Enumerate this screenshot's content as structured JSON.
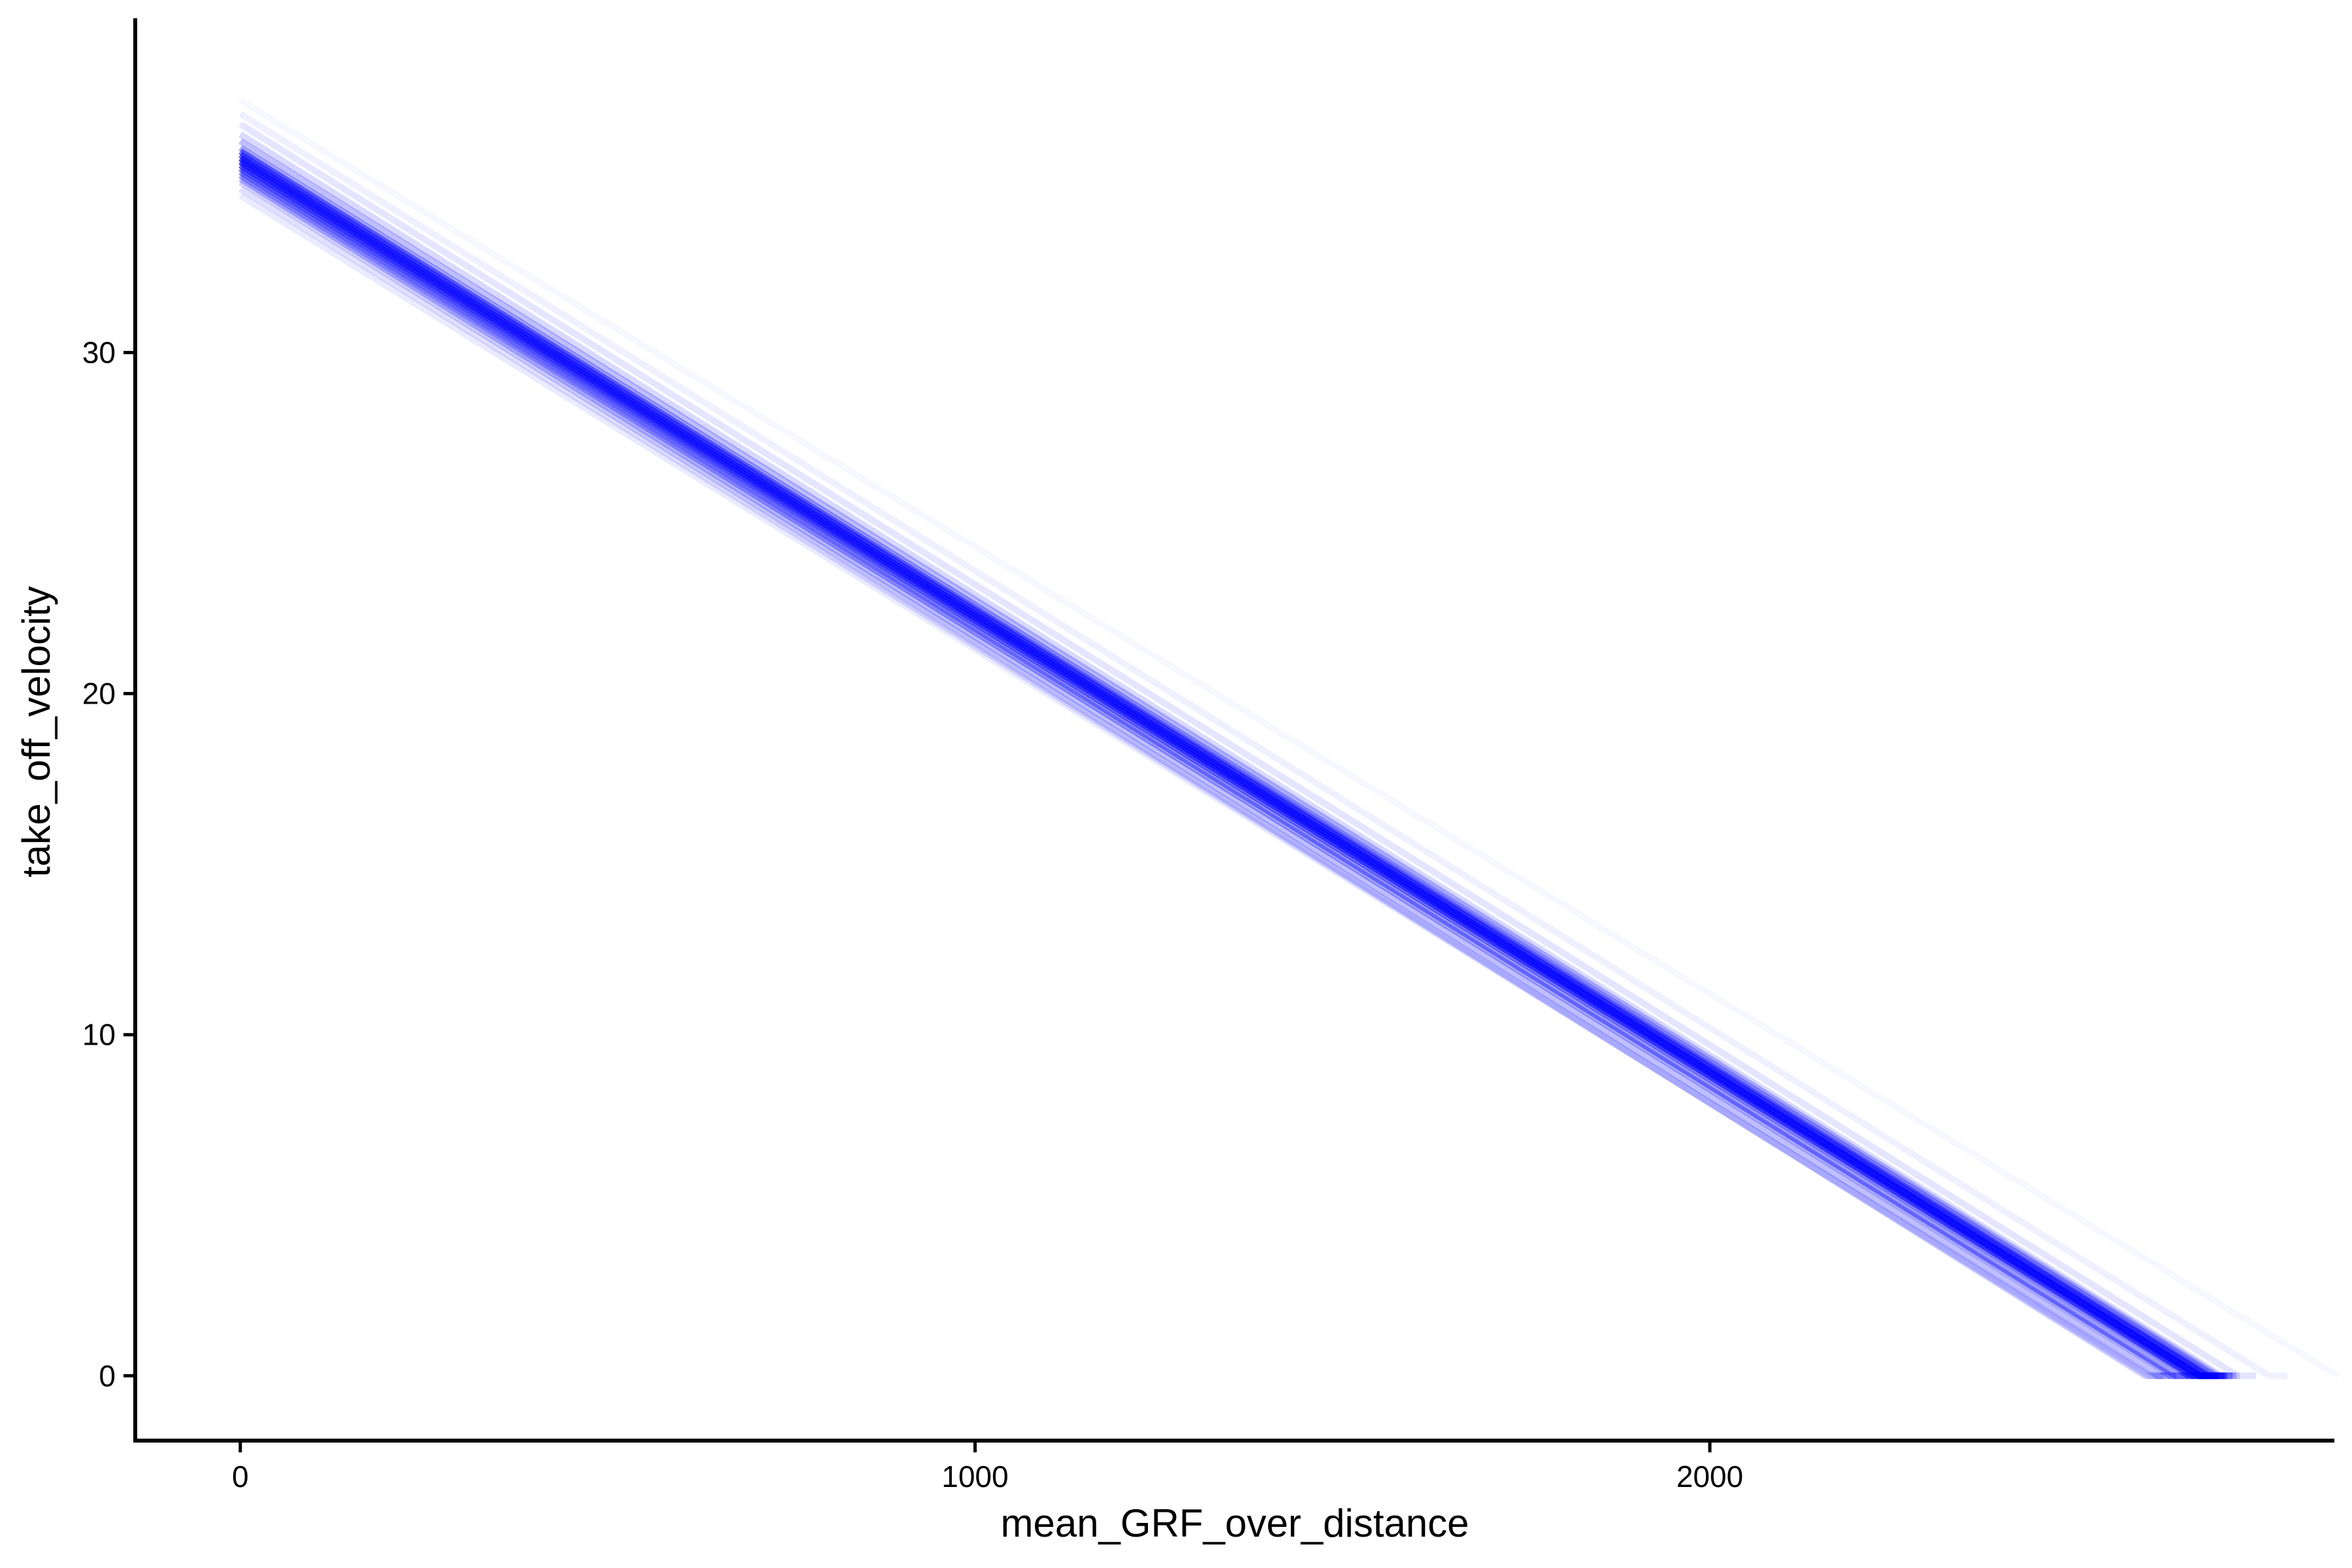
{
  "chart_data": {
    "type": "line",
    "title": "",
    "xlabel": "mean_GRF_over_distance",
    "ylabel": "take_off_velocity",
    "xlim": [
      -143,
      2850
    ],
    "ylim": [
      -1.9,
      39.8
    ],
    "x_ticks": [
      0,
      1000,
      2000
    ],
    "y_ticks": [
      0,
      10,
      20,
      30
    ],
    "x_tick_labels": [
      "0",
      "1000",
      "2000"
    ],
    "y_tick_labels": [
      "0",
      "10",
      "20",
      "30"
    ],
    "grid": false,
    "legend": "none",
    "line_color": "#0000ff",
    "description": "Ensemble of posterior regression lines, clipped at 0",
    "series": [
      {
        "intercept": 37.4,
        "slope": -0.0131,
        "opacity": 0.03
      },
      {
        "intercept": 37.0,
        "slope": -0.0134,
        "opacity": 0.06
      },
      {
        "intercept": 36.7,
        "slope": -0.0135,
        "opacity": 0.1
      },
      {
        "intercept": 36.4,
        "slope": -0.0135,
        "opacity": 0.15
      },
      {
        "intercept": 36.2,
        "slope": -0.01345,
        "opacity": 0.25
      },
      {
        "intercept": 36.0,
        "slope": -0.0134,
        "opacity": 0.35
      },
      {
        "intercept": 35.9,
        "slope": -0.0134,
        "opacity": 0.5
      },
      {
        "intercept": 35.8,
        "slope": -0.01338,
        "opacity": 0.6
      },
      {
        "intercept": 35.7,
        "slope": -0.01338,
        "opacity": 0.7
      },
      {
        "intercept": 35.6,
        "slope": -0.01336,
        "opacity": 0.7
      },
      {
        "intercept": 35.5,
        "slope": -0.01336,
        "opacity": 0.6
      },
      {
        "intercept": 35.4,
        "slope": -0.01335,
        "opacity": 0.5
      },
      {
        "intercept": 35.3,
        "slope": -0.0134,
        "opacity": 0.4
      },
      {
        "intercept": 35.2,
        "slope": -0.0134,
        "opacity": 0.35
      },
      {
        "intercept": 35.1,
        "slope": -0.01345,
        "opacity": 0.25
      },
      {
        "intercept": 35.0,
        "slope": -0.0135,
        "opacity": 0.18
      },
      {
        "intercept": 34.8,
        "slope": -0.0134,
        "opacity": 0.12
      },
      {
        "intercept": 34.6,
        "slope": -0.0133,
        "opacity": 0.08
      }
    ]
  }
}
